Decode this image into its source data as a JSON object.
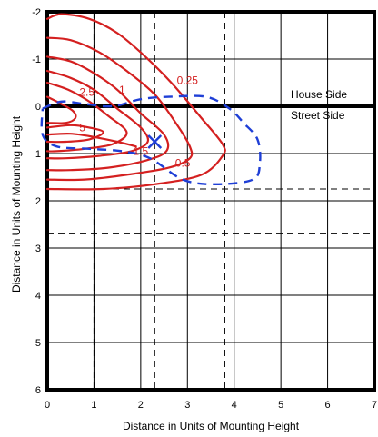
{
  "chart_data": {
    "type": "isofootcandle-contour",
    "title": "",
    "xlabel": "Distance in Units of Mounting Height",
    "ylabel": "Distance in Units of Mounting Height",
    "xlim": [
      0,
      7
    ],
    "ylim": [
      -2,
      6
    ],
    "y_inverted": true,
    "x_ticks": [
      "0",
      "1",
      "2",
      "3",
      "4",
      "5",
      "6",
      "7"
    ],
    "y_ticks": [
      "-2",
      "-1",
      "0",
      "1",
      "2",
      "3",
      "4",
      "5",
      "6"
    ],
    "region_labels": {
      "upper": "House Side",
      "lower": "Street Side"
    },
    "divider_y": 0,
    "dashed_verticals_x": [
      1,
      2.3,
      3.8
    ],
    "dashed_horizontals_y": [
      1,
      1.75,
      2.7
    ],
    "contours": [
      {
        "label": "0.25",
        "label_pos": [
          3.0,
          -0.55
        ],
        "points": [
          [
            0.0,
            -1.85
          ],
          [
            0.3,
            -1.95
          ],
          [
            0.9,
            -1.85
          ],
          [
            1.5,
            -1.55
          ],
          [
            2.1,
            -1.05
          ],
          [
            2.7,
            -0.45
          ],
          [
            3.3,
            0.25
          ],
          [
            3.75,
            0.8
          ],
          [
            3.75,
            1.05
          ],
          [
            3.3,
            1.45
          ],
          [
            2.3,
            1.65
          ],
          [
            1.2,
            1.75
          ],
          [
            0.0,
            1.75
          ]
        ]
      },
      {
        "label": "0.5",
        "label_pos": [
          2.9,
          1.2
        ],
        "points": [
          [
            0.0,
            -1.45
          ],
          [
            0.5,
            -1.4
          ],
          [
            1.1,
            -1.15
          ],
          [
            1.7,
            -0.75
          ],
          [
            2.3,
            -0.25
          ],
          [
            2.75,
            0.35
          ],
          [
            3.05,
            0.85
          ],
          [
            3.05,
            1.1
          ],
          [
            2.6,
            1.3
          ],
          [
            1.7,
            1.45
          ],
          [
            0.8,
            1.55
          ],
          [
            0.0,
            1.55
          ]
        ]
      },
      {
        "label": "1",
        "label_pos": [
          1.6,
          -0.35
        ],
        "points": [
          [
            0.0,
            -1.05
          ],
          [
            0.5,
            -0.95
          ],
          [
            1.0,
            -0.7
          ],
          [
            1.5,
            -0.35
          ],
          [
            2.0,
            0.15
          ],
          [
            2.5,
            0.6
          ],
          [
            2.55,
            0.95
          ],
          [
            2.1,
            1.15
          ],
          [
            1.3,
            1.3
          ],
          [
            0.5,
            1.35
          ],
          [
            0.0,
            1.35
          ]
        ]
      },
      {
        "label": "",
        "label_pos": [
          0,
          0
        ],
        "points": [
          [
            0.0,
            -0.75
          ],
          [
            0.5,
            -0.6
          ],
          [
            1.0,
            -0.35
          ],
          [
            1.5,
            0.05
          ],
          [
            2.0,
            0.45
          ],
          [
            2.15,
            0.75
          ],
          [
            1.8,
            0.95
          ],
          [
            1.1,
            1.05
          ],
          [
            0.4,
            1.1
          ],
          [
            0.0,
            1.1
          ]
        ]
      },
      {
        "label": "2.5",
        "label_pos": [
          0.85,
          -0.3
        ],
        "points": [
          [
            0.0,
            -0.5
          ],
          [
            0.45,
            -0.35
          ],
          [
            0.9,
            -0.1
          ],
          [
            1.3,
            0.2
          ],
          [
            1.7,
            0.55
          ],
          [
            1.4,
            0.8
          ],
          [
            0.8,
            0.9
          ],
          [
            0.2,
            0.95
          ],
          [
            0.0,
            0.95
          ]
        ]
      },
      {
        "label": "",
        "label_pos": [
          0,
          0
        ],
        "points": [
          [
            0.0,
            -0.2
          ],
          [
            0.3,
            -0.05
          ],
          [
            0.55,
            0.1
          ],
          [
            0.6,
            0.25
          ],
          [
            0.4,
            0.35
          ],
          [
            0.0,
            0.35
          ]
        ]
      },
      {
        "label": "5",
        "label_pos": [
          0.75,
          0.45
        ],
        "points": [
          [
            0.0,
            0.45
          ],
          [
            0.5,
            0.4
          ],
          [
            0.9,
            0.45
          ],
          [
            1.2,
            0.55
          ],
          [
            0.9,
            0.7
          ],
          [
            0.4,
            0.75
          ],
          [
            0.0,
            0.75
          ]
        ]
      },
      {
        "label": "1.5",
        "label_pos": [
          2.0,
          0.95
        ],
        "points": [
          [
            0.0,
            0.6
          ],
          [
            0.5,
            0.58
          ],
          [
            1.0,
            0.65
          ],
          [
            1.5,
            0.75
          ],
          [
            1.9,
            0.85
          ]
        ]
      }
    ],
    "max_illuminance_points": [
      {
        "label": "",
        "points": [
          [
            -0.1,
            0.05
          ],
          [
            0.3,
            -0.1
          ],
          [
            0.8,
            -0.05
          ],
          [
            1.4,
            0.0
          ],
          [
            2.0,
            -0.15
          ],
          [
            2.6,
            -0.2
          ],
          [
            3.4,
            -0.2
          ],
          [
            3.9,
            0.05
          ],
          [
            4.2,
            0.35
          ],
          [
            4.5,
            0.7
          ],
          [
            4.55,
            1.2
          ],
          [
            4.4,
            1.55
          ],
          [
            3.6,
            1.65
          ],
          [
            2.9,
            1.55
          ],
          [
            2.2,
            1.1
          ],
          [
            1.6,
            0.95
          ],
          [
            0.9,
            0.9
          ],
          [
            0.2,
            0.85
          ],
          [
            -0.1,
            0.6
          ],
          [
            -0.1,
            0.05
          ]
        ]
      }
    ],
    "marker": {
      "type": "x",
      "x": 2.3,
      "y": 0.75
    },
    "colors": {
      "contours": "#d42020",
      "max_outline": "#1f3fd6",
      "marker": "#1f3fd6",
      "grid": "#000000"
    }
  }
}
